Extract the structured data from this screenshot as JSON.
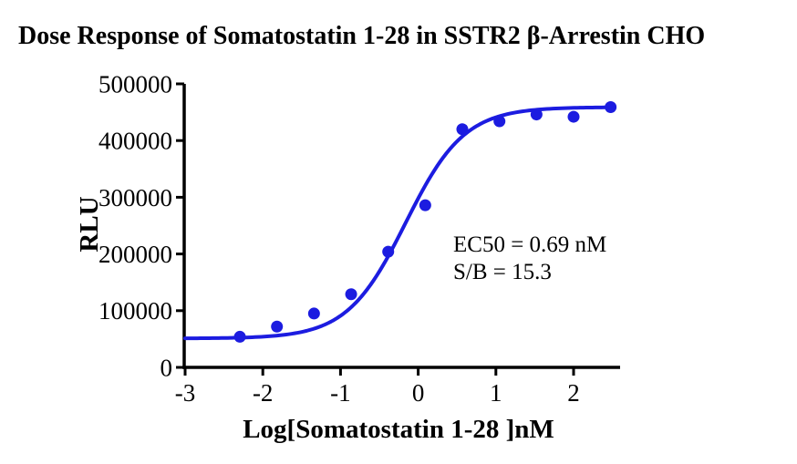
{
  "chart_data": {
    "type": "scatter",
    "title": "Dose Response of Somatostatin 1-28 in SSTR2 β-Arrestin CHO",
    "xlabel": "Log[Somatostatin 1-28 ]nM",
    "ylabel": "RLU",
    "xlim": [
      -3,
      2.6
    ],
    "ylim": [
      0,
      500000
    ],
    "x_ticks": [
      -3,
      -2,
      -1,
      0,
      1,
      2
    ],
    "y_ticks": [
      0,
      100000,
      200000,
      300000,
      400000,
      500000
    ],
    "grid": false,
    "legend": false,
    "series": [
      {
        "name": "Somatostatin 1-28",
        "x": [
          -2.295,
          -1.818,
          -1.341,
          -0.863,
          -0.386,
          0.091,
          0.568,
          1.046,
          1.523,
          2.0,
          2.477
        ],
        "y": [
          54000,
          72000,
          95000,
          129000,
          204000,
          286000,
          420000,
          434000,
          446000,
          442000,
          459000
        ]
      }
    ],
    "fit_curve": {
      "model": "four-parameter-logistic",
      "bottom": 51000,
      "top": 459000,
      "log_ec50": -0.1612,
      "hill_slope": 1.15,
      "x_start": -3,
      "x_end": 2.477
    },
    "annotations": {
      "ec50": "EC50 = 0.69 nM",
      "sb": "S/B = 15.3"
    },
    "colors": {
      "series": "#1c1ce0",
      "axis": "#000000",
      "text": "#000000",
      "background": "#ffffff"
    }
  }
}
